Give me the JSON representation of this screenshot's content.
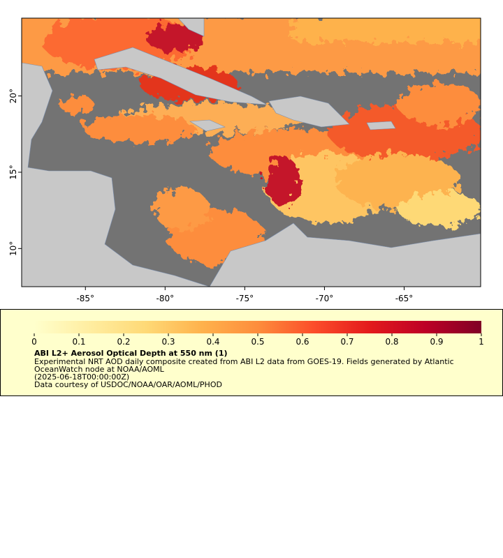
{
  "map": {
    "lonlim": [
      -89,
      -60.2
    ],
    "latlim": [
      7.5,
      25.1
    ],
    "xticks": [
      {
        "value": -85,
        "label": "-85°"
      },
      {
        "value": -80,
        "label": "-80°"
      },
      {
        "value": -75,
        "label": "-75°"
      },
      {
        "value": -70,
        "label": "-70°"
      },
      {
        "value": -65,
        "label": "-65°"
      }
    ],
    "yticks": [
      {
        "value": 10,
        "label": "10°"
      },
      {
        "value": 15,
        "label": "15°"
      },
      {
        "value": 20,
        "label": "20°"
      }
    ],
    "ocean_color": "#737373",
    "land_color": "#c8c8c8"
  },
  "colorbar": {
    "title": "ABI L2+ Aerosol Optical Depth at 550 nm (1)",
    "range": [
      0,
      1
    ],
    "ticks": [
      0,
      0.1,
      0.2,
      0.3,
      0.4,
      0.5,
      0.6,
      0.7,
      0.8,
      0.9,
      1
    ],
    "colors": [
      "#ffffcc",
      "#ffeda0",
      "#fed976",
      "#feb24c",
      "#fd8d3c",
      "#fc4e2a",
      "#e31a1c",
      "#bd0026",
      "#800026"
    ],
    "description": [
      "Experimental NRT AOD daily composite created from ABI L2 data from GOES-19. Fields generated by Atlantic",
      "OceanWatch node at NOAA/AOML",
      "(2025-06-18T00:00:00Z)",
      "Data courtesy of USDOC/NOAA/OAR/AOML/PHOD"
    ]
  }
}
